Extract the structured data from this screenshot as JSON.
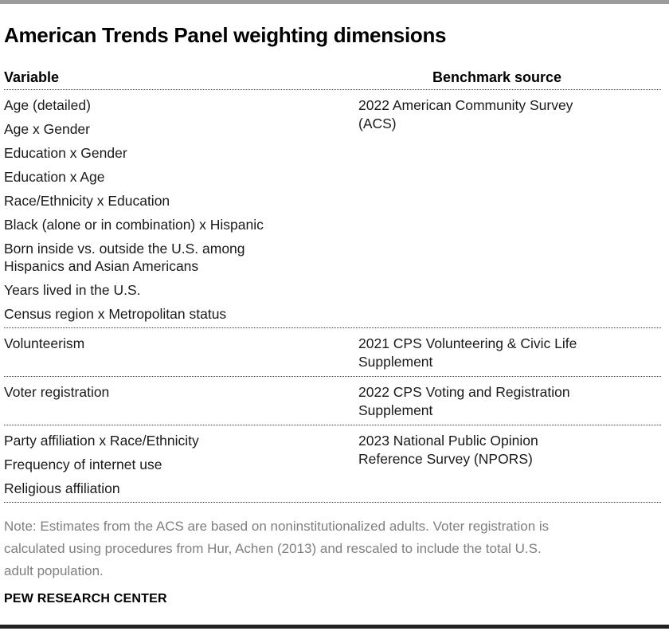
{
  "title": "American Trends Panel weighting dimensions",
  "colors": {
    "top_bar": "#9b9b9b",
    "bottom_bar": "#212121",
    "body_text": "#1a1a1a",
    "note_text": "#7f7f7f",
    "separator": "#3c3c3c"
  },
  "table": {
    "col_variable": "Variable",
    "col_source": "Benchmark source",
    "rows": [
      {
        "variables": [
          "Age (detailed)",
          "Age x Gender",
          "Education x Gender",
          "Education x Age",
          "Race/Ethnicity x Education",
          "Black (alone or in combination) x Hispanic",
          "Born inside vs. outside the U.S. among Hispanics and Asian Americans",
          "Years lived in the U.S.",
          "Census region x Metropolitan status"
        ],
        "source_lines": [
          "2022 American Community Survey",
          "(ACS)"
        ]
      },
      {
        "variables": [
          "Volunteerism"
        ],
        "source_lines": [
          "2021 CPS Volunteering & Civic Life",
          "Supplement"
        ]
      },
      {
        "variables": [
          "Voter registration"
        ],
        "source_lines": [
          "2022 CPS Voting and Registration",
          "Supplement"
        ]
      },
      {
        "variables": [
          "Party affiliation x Race/Ethnicity",
          "Frequency of internet use",
          "Religious affiliation"
        ],
        "source_lines": [
          "2023 National Public Opinion",
          "Reference Survey (NPORS)"
        ]
      }
    ]
  },
  "note": {
    "lines": [
      "Note: Estimates from the ACS are based on noninstitutionalized adults. Voter registration is",
      "calculated using procedures from Hur, Achen (2013) and rescaled to include the total U.S.",
      "adult population."
    ],
    "full_text": "Note: Estimates from the ACS are based on noninstitutionalized adults. Voter registration is calculated using procedures from Hur, Achen (2013) and rescaled to include the total U.S. adult population."
  },
  "footer": "PEW RESEARCH CENTER",
  "chart_data": {
    "type": "table",
    "title": "American Trends Panel weighting dimensions",
    "columns": [
      "Variable",
      "Benchmark source"
    ],
    "rows": [
      {
        "variable": [
          "Age (detailed)",
          "Age x Gender",
          "Education x Gender",
          "Education x Age",
          "Race/Ethnicity x Education",
          "Black (alone or in combination) x Hispanic",
          "Born inside vs. outside the U.S. among Hispanics and Asian Americans",
          "Years lived in the U.S.",
          "Census region x Metropolitan status"
        ],
        "benchmark_source": "2022 American Community Survey (ACS)"
      },
      {
        "variable": [
          "Volunteerism"
        ],
        "benchmark_source": "2021 CPS Volunteering & Civic Life Supplement"
      },
      {
        "variable": [
          "Voter registration"
        ],
        "benchmark_source": "2022 CPS Voting and Registration Supplement"
      },
      {
        "variable": [
          "Party affiliation x Race/Ethnicity",
          "Frequency of internet use",
          "Religious affiliation"
        ],
        "benchmark_source": "2023 National Public Opinion Reference Survey (NPORS)"
      }
    ],
    "note": "Note: Estimates from the ACS are based on noninstitutionalized adults. Voter registration is calculated using procedures from Hur, Achen (2013) and rescaled to include the total U.S. adult population.",
    "source_label": "PEW RESEARCH CENTER"
  }
}
